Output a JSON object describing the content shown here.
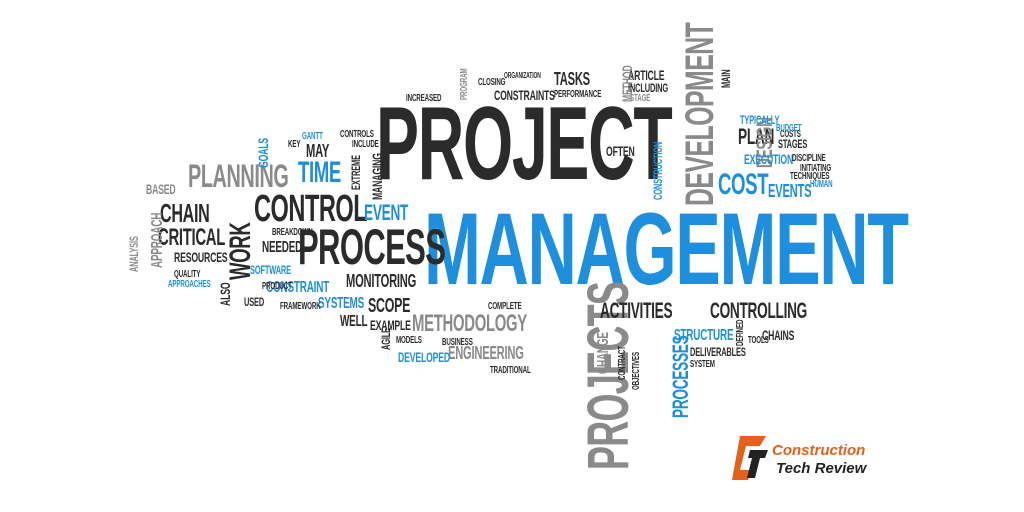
{
  "image": {
    "description_words": {
      "main_1": "PROJECT",
      "main_2": "MANAGEMENT",
      "w_development": "DEVELOPMENT",
      "w_projects": "PROJECTS",
      "w_process": "PROCESS",
      "w_control": "CONTROL",
      "w_planning": "PLANNING",
      "w_time": "TIME",
      "w_event": "EVENT",
      "w_work": "WORK",
      "w_chain": "CHAIN",
      "w_critical": "CRITICAL",
      "w_activities": "ACTIVITIES",
      "w_controlling": "CONTROLLING",
      "w_methodology": "METHODOLOGY",
      "w_engineering": "ENGINEERING",
      "w_processes": "PROCESSES",
      "w_cost": "COST",
      "w_events": "EVENTS",
      "w_plan": "PLAN",
      "w_design": "DESIGN",
      "w_execution": "EXECUTION",
      "w_typically": "TYPICALLY",
      "w_tasks": "TASKS",
      "w_constraints": "CONSTRAINTS",
      "w_article": "ARTICLE",
      "w_method": "METHOD",
      "w_structure": "STRUCTURE",
      "w_chains": "CHAINS",
      "w_scope": "SCOPE",
      "w_monitoring": "MONITORING",
      "w_constraint": "CONSTRAINT",
      "w_systems": "SYSTEMS",
      "w_software": "SOFTWARE",
      "w_needed": "NEEDED",
      "w_resources": "RESOURCES",
      "w_approach": "APPROACH",
      "w_based": "BASED",
      "w_analysis": "ANALYSIS",
      "w_example": "EXAMPLE",
      "w_well": "WELL",
      "w_developed": "DEVELOPED",
      "w_change": "CHANGE",
      "w_may": "MAY",
      "w_goals": "GOALS",
      "w_often": "OFTEN",
      "w_construction": "CONSTRUCTION",
      "w_deliverables": "DELIVERABLES",
      "w_quality": "QUALITY",
      "w_used": "USED",
      "w_also": "ALSO",
      "w_complete": "COMPLETE",
      "w_business": "BUSINESS",
      "w_traditional": "TRADITIONAL",
      "w_contract": "CONTRACT",
      "w_objectives": "OBJECTIVES",
      "w_agile": "AGILE",
      "w_models": "MODELS",
      "w_stages": "STAGES",
      "w_management_small": "MANAGING",
      "w_extreme": "EXTREME",
      "w_controls": "CONTROLS",
      "w_include": "INCLUDE",
      "w_including": "INCLUDING",
      "w_stage": "STAGE",
      "w_performance": "PERFORMANCE",
      "w_main": "MAIN",
      "w_discipline": "DISCIPLINE",
      "w_initiating": "INITIATING",
      "w_techniques": "TECHNIQUES",
      "w_human": "HUMAN",
      "w_costs": "COSTS",
      "w_budget": "BUDGET",
      "w_tools": "TOOLS",
      "w_defined": "DEFINED",
      "w_system": "SYSTEM",
      "w_key": "KEY",
      "w_gantt": "GANTT",
      "w_product": "PRODUCT",
      "w_framework": "FRAMEWORK",
      "w_breakdown": "BREAKDOWN",
      "w_approaches": "APPROACHES",
      "w_increased": "INCREASED",
      "w_program": "PROGRAM",
      "w_closing": "CLOSING",
      "w_organization": "ORGANIZATION"
    },
    "logo": {
      "line1": "Construction",
      "line2": "Tech Review"
    },
    "colors": {
      "dark": "#2b2b2b",
      "gray": "#8a8a8a",
      "blue": "#1e8fdc",
      "logo_orange": "#e4601c"
    }
  }
}
